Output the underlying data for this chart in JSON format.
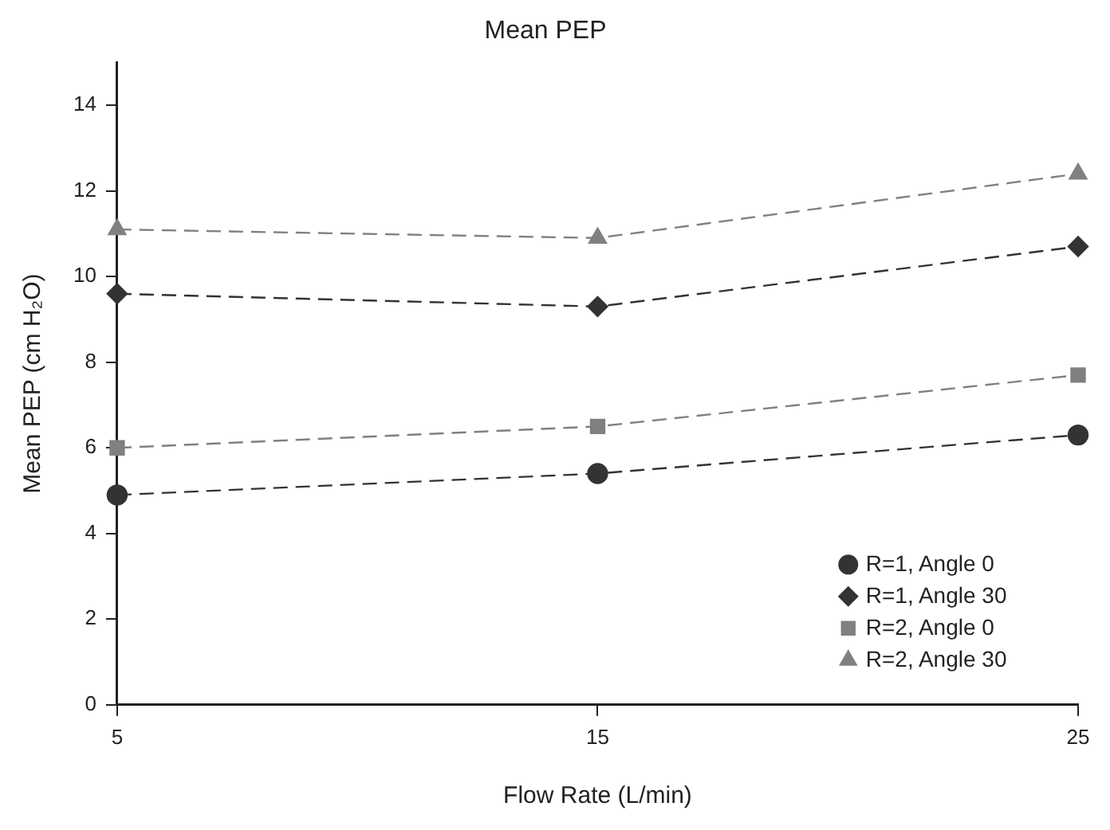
{
  "chart_data": {
    "type": "line",
    "title": "Mean PEP",
    "xlabel": "Flow Rate (L/min)",
    "ylabel": "Mean PEP (cm H₂O)",
    "x": [
      5,
      15,
      25
    ],
    "xlim": [
      5,
      25
    ],
    "xticks": [
      5,
      15,
      25
    ],
    "ylim": [
      0,
      15
    ],
    "yticks": [
      0,
      2,
      4,
      6,
      8,
      10,
      12,
      14
    ],
    "grid": false,
    "legend": "bottom right",
    "line_style": "dashed",
    "series": [
      {
        "name": "R=1, Angle 0",
        "color": "#333333",
        "marker": "circle",
        "values": [
          4.9,
          5.4,
          6.3
        ]
      },
      {
        "name": "R=1, Angle 30",
        "color": "#333333",
        "marker": "diamond",
        "values": [
          9.6,
          9.3,
          10.7
        ]
      },
      {
        "name": "R=2, Angle 0",
        "color": "#808080",
        "marker": "square",
        "values": [
          6.0,
          6.5,
          7.7
        ]
      },
      {
        "name": "R=2, Angle 30",
        "color": "#808080",
        "marker": "triangle",
        "values": [
          11.1,
          10.9,
          12.4
        ]
      }
    ]
  }
}
